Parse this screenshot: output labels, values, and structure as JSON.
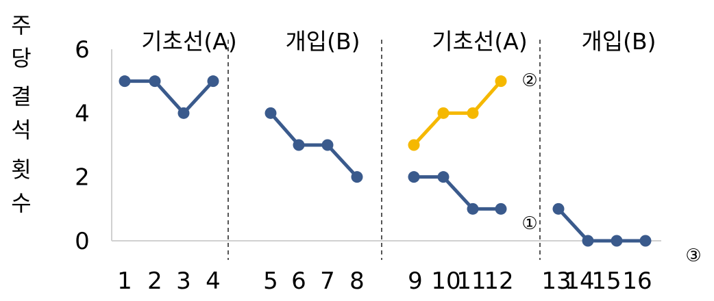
{
  "chart_data": {
    "type": "line",
    "ylabel_chars": [
      "주",
      "당",
      "결",
      "석",
      "횟",
      "수"
    ],
    "y_ticks": [
      "0",
      "2",
      "4",
      "6"
    ],
    "ylim": [
      0,
      6
    ],
    "x_tick_labels": [
      "1",
      "2",
      "3",
      "4",
      "5",
      "6",
      "7",
      "8",
      "9",
      "10",
      "11",
      "12",
      "13",
      "14",
      "15",
      "16"
    ],
    "phases": [
      {
        "label": "기초선(A)",
        "sessions": [
          1,
          4
        ]
      },
      {
        "label": "개입(B)",
        "sessions": [
          5,
          8
        ]
      },
      {
        "label": "기초선(A)",
        "sessions": [
          9,
          12
        ]
      },
      {
        "label": "개입(B)",
        "sessions": [
          13,
          16
        ]
      }
    ],
    "series": [
      {
        "marker": "①",
        "color": "#3a5a8c",
        "points": [
          [
            1,
            5
          ],
          [
            2,
            5
          ],
          [
            3,
            4
          ],
          [
            4,
            5
          ],
          [
            5,
            4
          ],
          [
            6,
            3
          ],
          [
            7,
            3
          ],
          [
            8,
            2
          ],
          [
            9,
            2
          ],
          [
            10,
            2
          ],
          [
            11,
            1
          ],
          [
            12,
            1
          ],
          [
            13,
            1
          ],
          [
            14,
            0
          ],
          [
            15,
            0
          ],
          [
            16,
            0
          ]
        ],
        "breaks_after": [
          4,
          8,
          12
        ]
      },
      {
        "marker": "②",
        "color": "#f5b800",
        "points": [
          [
            9,
            3
          ],
          [
            10,
            4
          ],
          [
            11,
            4
          ],
          [
            12,
            5
          ]
        ],
        "breaks_after": []
      }
    ],
    "extra_marker": "③",
    "grid": false,
    "phase_dividers": "dashed"
  }
}
